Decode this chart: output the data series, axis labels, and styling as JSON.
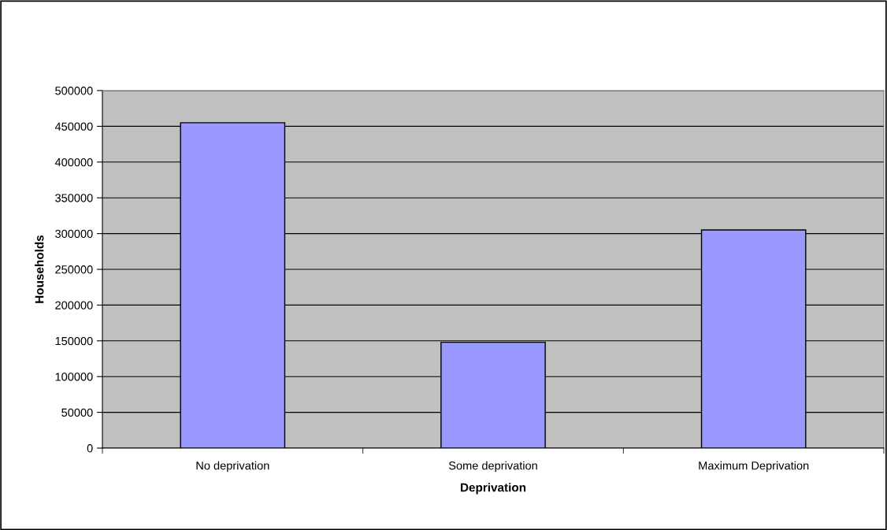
{
  "chart_data": {
    "type": "bar",
    "xlabel": "Deprivation",
    "ylabel": "Households",
    "categories": [
      "No deprivation",
      "Some deprivation",
      "Maximum Deprivation"
    ],
    "values": [
      455000,
      148000,
      305000
    ],
    "color": "#9999ff",
    "ylim": [
      0,
      500000
    ],
    "yticks": [
      0,
      50000,
      100000,
      150000,
      200000,
      250000,
      300000,
      350000,
      400000,
      450000,
      500000
    ],
    "grid": "y",
    "legend": false
  }
}
